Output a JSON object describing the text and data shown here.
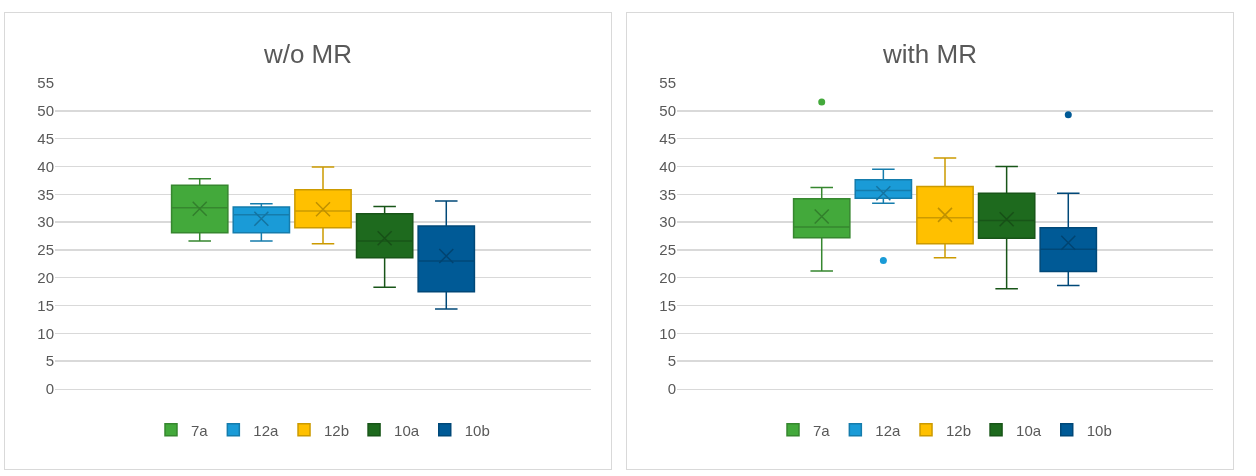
{
  "chart_data": [
    {
      "type": "box",
      "title": "w/o MR",
      "categories": [
        null
      ],
      "ylim": [
        0,
        55
      ],
      "yticks": [
        0,
        5,
        10,
        15,
        20,
        25,
        30,
        35,
        40,
        45,
        50,
        55
      ],
      "grid": "y",
      "legend": "bottom",
      "tick_labels": "y",
      "series": [
        {
          "name": "7a",
          "color": "#43a93b",
          "boxes": [
            {
              "low": 26.6,
              "q1": 28.1,
              "median": 32.6,
              "q3": 36.6,
              "high": 37.8,
              "mean": 32.4
            }
          ]
        },
        {
          "name": "12a",
          "color": "#1a9bd7",
          "boxes": [
            {
              "low": 26.6,
              "q1": 28.1,
              "median": 31.3,
              "q3": 32.7,
              "high": 33.3,
              "mean": 30.6
            }
          ]
        },
        {
          "name": "12b",
          "color": "#ffc000",
          "boxes": [
            {
              "low": 26.1,
              "q1": 29.0,
              "median": 32.0,
              "q3": 35.8,
              "high": 39.9,
              "mean": 32.3
            }
          ]
        },
        {
          "name": "10a",
          "color": "#1e6a1e",
          "boxes": [
            {
              "low": 18.3,
              "q1": 23.6,
              "median": 26.6,
              "q3": 31.5,
              "high": 32.8,
              "mean": 27.1
            }
          ]
        },
        {
          "name": "10b",
          "color": "#005a96",
          "boxes": [
            {
              "low": 14.4,
              "q1": 17.5,
              "median": 23.0,
              "q3": 29.3,
              "high": 33.8,
              "mean": 23.9
            }
          ]
        }
      ]
    },
    {
      "type": "box",
      "title": "with MR",
      "categories": [
        null
      ],
      "ylim": [
        0,
        55
      ],
      "yticks": [
        0,
        5,
        10,
        15,
        20,
        25,
        30,
        35,
        40,
        45,
        50,
        55
      ],
      "grid": "y",
      "legend": "bottom",
      "tick_labels": "y",
      "series": [
        {
          "name": "7a",
          "color": "#43a93b",
          "boxes": [
            {
              "low": 21.2,
              "q1": 27.2,
              "median": 29.1,
              "q3": 34.2,
              "high": 36.2,
              "mean": 31.0,
              "outliers": [
                51.6
              ]
            }
          ]
        },
        {
          "name": "12a",
          "color": "#1a9bd7",
          "boxes": [
            {
              "low": 33.4,
              "q1": 34.3,
              "median": 35.7,
              "q3": 37.6,
              "high": 39.5,
              "mean": 35.2,
              "outliers": [
                23.1
              ]
            }
          ]
        },
        {
          "name": "12b",
          "color": "#ffc000",
          "boxes": [
            {
              "low": 23.6,
              "q1": 26.1,
              "median": 30.8,
              "q3": 36.4,
              "high": 41.5,
              "mean": 31.3
            }
          ]
        },
        {
          "name": "10a",
          "color": "#1e6a1e",
          "boxes": [
            {
              "low": 18.0,
              "q1": 27.1,
              "median": 30.3,
              "q3": 35.2,
              "high": 40.0,
              "mean": 30.5
            }
          ]
        },
        {
          "name": "10b",
          "color": "#005a96",
          "boxes": [
            {
              "low": 18.6,
              "q1": 21.1,
              "median": 25.1,
              "q3": 29.0,
              "high": 35.2,
              "mean": 26.3,
              "outliers": [
                49.3
              ]
            }
          ]
        }
      ]
    }
  ]
}
